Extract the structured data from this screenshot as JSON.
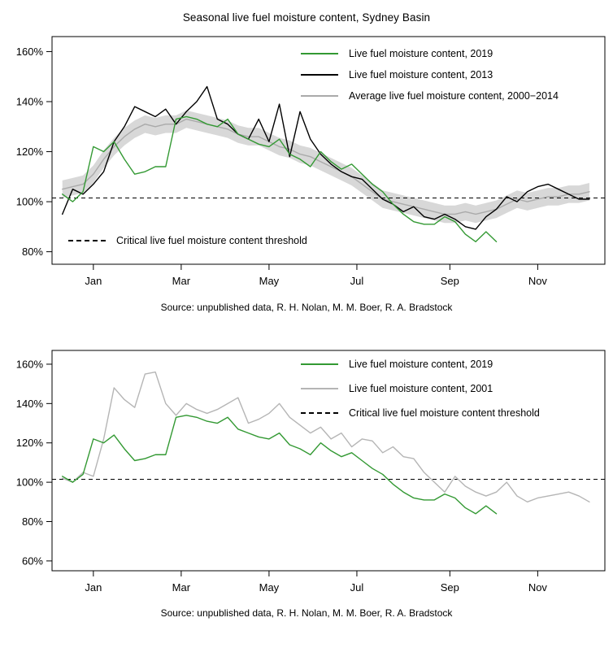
{
  "page_title": "Seasonal live fuel moisture content, Sydney Basin",
  "colors": {
    "green_2019": "#339933",
    "black_2013": "#000000",
    "gray_average": "#aaaaaa",
    "gray_band": "#d8d8d8",
    "gray_2001": "#b5b5b5",
    "threshold": "#000000"
  },
  "chart_data": [
    {
      "type": "line",
      "title": "Seasonal live fuel moisture content, Sydney Basin",
      "xlabel": "",
      "ylabel": "",
      "grid": false,
      "legend_position": "top-right-inside",
      "x_unit": "week of year",
      "xlim": [
        -1,
        52.5
      ],
      "ylim": [
        75,
        166
      ],
      "yticks": [
        {
          "value": 160,
          "label": "160%"
        },
        {
          "value": 140,
          "label": "140%"
        },
        {
          "value": 120,
          "label": "120%"
        },
        {
          "value": 100,
          "label": "100%"
        },
        {
          "value": 80,
          "label": "80%"
        }
      ],
      "xticks": [
        {
          "value": 3,
          "label": "Jan"
        },
        {
          "value": 11.5,
          "label": "Mar"
        },
        {
          "value": 20,
          "label": "May"
        },
        {
          "value": 28.5,
          "label": "Jul"
        },
        {
          "value": 37.5,
          "label": "Sep"
        },
        {
          "value": 46,
          "label": "Nov"
        }
      ],
      "threshold": {
        "value": 101.5,
        "label": "Critical live fuel moisture content threshold"
      },
      "series": [
        {
          "name": "lfmc-2019",
          "label": "Live fuel moisture content, 2019",
          "color": "#339933",
          "values": [
            103,
            100,
            104,
            122,
            120,
            124,
            117,
            111,
            112,
            114,
            114,
            133,
            134,
            133,
            131,
            130,
            133,
            127,
            125,
            123,
            122,
            125,
            119,
            117,
            114,
            120,
            116,
            113,
            115,
            111,
            107,
            104,
            99,
            95,
            92,
            91,
            91,
            94,
            92,
            87,
            84,
            88,
            84
          ]
        },
        {
          "name": "lfmc-2013",
          "label": "Live fuel moisture content, 2013",
          "color": "#000000",
          "values": [
            95,
            105,
            103,
            107,
            112,
            124,
            130,
            138,
            136,
            134,
            137,
            131,
            136,
            140,
            146,
            133,
            131,
            127,
            125,
            133,
            124,
            139,
            118,
            136,
            125,
            119,
            115,
            112,
            110,
            109,
            105,
            101,
            99,
            96,
            98,
            94,
            93,
            95,
            93,
            90,
            89,
            94,
            97,
            102,
            100,
            104,
            106,
            107,
            105,
            103,
            101,
            101
          ]
        },
        {
          "name": "lfmc-average-2000-2014",
          "label": "Average live fuel moisture content, 2000−2014",
          "color": "#aaaaaa",
          "band": 3.5,
          "band_color": "#d8d8d8",
          "values": [
            105,
            106,
            107,
            111,
            117,
            122,
            126,
            129,
            131,
            130,
            131,
            131,
            133,
            132,
            131,
            130,
            129,
            127,
            126,
            126,
            124,
            122,
            121,
            119,
            118,
            116,
            114,
            112,
            110,
            107,
            104,
            101,
            100,
            99,
            98,
            97,
            96,
            95,
            95,
            96,
            95,
            96,
            97,
            99,
            101,
            100,
            101,
            102,
            102,
            103,
            103,
            104
          ]
        }
      ],
      "source": "Source: unpublished data, R. H. Nolan, M. M. Boer, R. A. Bradstock"
    },
    {
      "type": "line",
      "title": "",
      "xlabel": "",
      "ylabel": "",
      "grid": false,
      "legend_position": "top-right-inside",
      "x_unit": "week of year",
      "xlim": [
        -1,
        52.5
      ],
      "ylim": [
        55,
        167
      ],
      "yticks": [
        {
          "value": 160,
          "label": "160%"
        },
        {
          "value": 140,
          "label": "140%"
        },
        {
          "value": 120,
          "label": "120%"
        },
        {
          "value": 100,
          "label": "100%"
        },
        {
          "value": 80,
          "label": "80%"
        },
        {
          "value": 60,
          "label": "60%"
        }
      ],
      "xticks": [
        {
          "value": 3,
          "label": "Jan"
        },
        {
          "value": 11.5,
          "label": "Mar"
        },
        {
          "value": 20,
          "label": "May"
        },
        {
          "value": 28.5,
          "label": "Jul"
        },
        {
          "value": 37.5,
          "label": "Sep"
        },
        {
          "value": 46,
          "label": "Nov"
        }
      ],
      "threshold": {
        "value": 101.5,
        "label": "Critical live fuel moisture content threshold"
      },
      "series": [
        {
          "name": "lfmc-2019",
          "label": "Live fuel moisture content, 2019",
          "color": "#339933",
          "values": [
            103,
            100,
            104,
            122,
            120,
            124,
            117,
            111,
            112,
            114,
            114,
            133,
            134,
            133,
            131,
            130,
            133,
            127,
            125,
            123,
            122,
            125,
            119,
            117,
            114,
            120,
            116,
            113,
            115,
            111,
            107,
            104,
            99,
            95,
            92,
            91,
            91,
            94,
            92,
            87,
            84,
            88,
            84
          ]
        },
        {
          "name": "lfmc-2001",
          "label": "Live fuel moisture content, 2001",
          "color": "#b5b5b5",
          "values": [
            102,
            100,
            105,
            103,
            122,
            148,
            142,
            138,
            155,
            156,
            140,
            134,
            140,
            137,
            135,
            137,
            140,
            143,
            130,
            132,
            135,
            140,
            133,
            129,
            125,
            128,
            122,
            125,
            118,
            122,
            121,
            115,
            118,
            113,
            112,
            105,
            100,
            95,
            103,
            98,
            95,
            93,
            95,
            100,
            93,
            90,
            92,
            93,
            94,
            95,
            93,
            90
          ]
        }
      ],
      "source": "Source: unpublished data, R. H. Nolan, M. M. Boer, R. A. Bradstock"
    }
  ]
}
